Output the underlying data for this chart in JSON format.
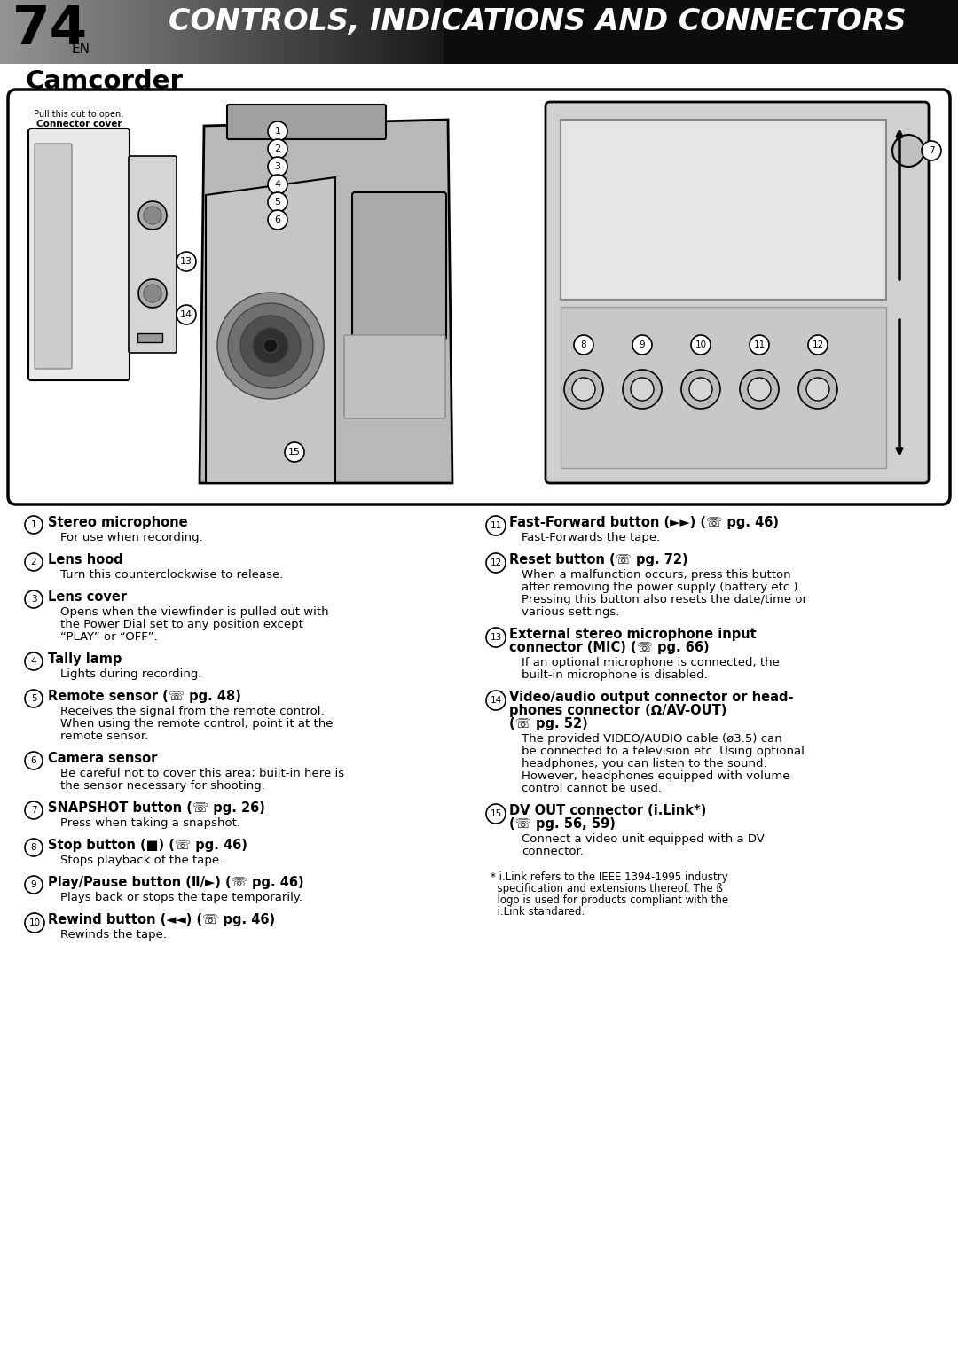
{
  "page_number": "74",
  "page_sub": "EN",
  "header_title": "CONTROLS, INDICATIONS AND CONNECTORS",
  "section_title": "Camcorder",
  "bg_color": "#ffffff",
  "items_left": [
    {
      "num": "1",
      "title": "Stereo microphone",
      "desc": "For use when recording."
    },
    {
      "num": "2",
      "title": "Lens hood",
      "desc": "Turn this counterclockwise to release."
    },
    {
      "num": "3",
      "title": "Lens cover",
      "desc": "Opens when the viewfinder is pulled out with\nthe Power Dial set to any position except\n“PLAY” or “OFF”."
    },
    {
      "num": "4",
      "title": "Tally lamp",
      "desc": "Lights during recording."
    },
    {
      "num": "5",
      "title": "Remote sensor (☏ pg. 48)",
      "desc": "Receives the signal from the remote control.\nWhen using the remote control, point it at the\nremote sensor."
    },
    {
      "num": "6",
      "title": "Camera sensor",
      "desc": "Be careful not to cover this area; built-in here is\nthe sensor necessary for shooting."
    },
    {
      "num": "7",
      "title": "SNAPSHOT button (☏ pg. 26)",
      "desc": "Press when taking a snapshot."
    },
    {
      "num": "8",
      "title": "Stop button (■) (☏ pg. 46)",
      "desc": "Stops playback of the tape."
    },
    {
      "num": "9",
      "title": "Play/Pause button (Ⅱ/►) (☏ pg. 46)",
      "desc": "Plays back or stops the tape temporarily."
    },
    {
      "num": "10",
      "title": "Rewind button (◄◄) (☏ pg. 46)",
      "desc": "Rewinds the tape."
    }
  ],
  "items_right": [
    {
      "num": "11",
      "title": "Fast-Forward button (►►) (☏ pg. 46)",
      "desc": "Fast-Forwards the tape."
    },
    {
      "num": "12",
      "title": "Reset button (☏ pg. 72)",
      "desc": "When a malfunction occurs, press this button\nafter removing the power supply (battery etc.).\nPressing this button also resets the date/time or\nvarious settings."
    },
    {
      "num": "13",
      "title": "External stereo microphone input\nconnector (MIC) (☏ pg. 66)",
      "desc": "If an optional microphone is connected, the\nbuilt-in microphone is disabled."
    },
    {
      "num": "14",
      "title": "Video/audio output connector or head-\nphones connector (Ω/AV-OUT)\n(☏ pg. 52)",
      "desc": "The provided VIDEO/AUDIO cable (ø3.5) can\nbe connected to a television etc. Using optional\nheadphones, you can listen to the sound.\nHowever, headphones equipped with volume\ncontrol cannot be used."
    },
    {
      "num": "15",
      "title": "DV OUT connector (i.Link*)\n(☏ pg. 56, 59)",
      "desc": "Connect a video unit equipped with a DV\nconnector."
    }
  ],
  "footnote": "* i.Link refers to the IEEE 1394-1995 industry\n  specification and extensions thereof. The ß\n  logo is used for products compliant with the\n  i.Link standared.",
  "connector_cover_line1": "Connector cover",
  "connector_cover_line2": "Pull this out to open."
}
